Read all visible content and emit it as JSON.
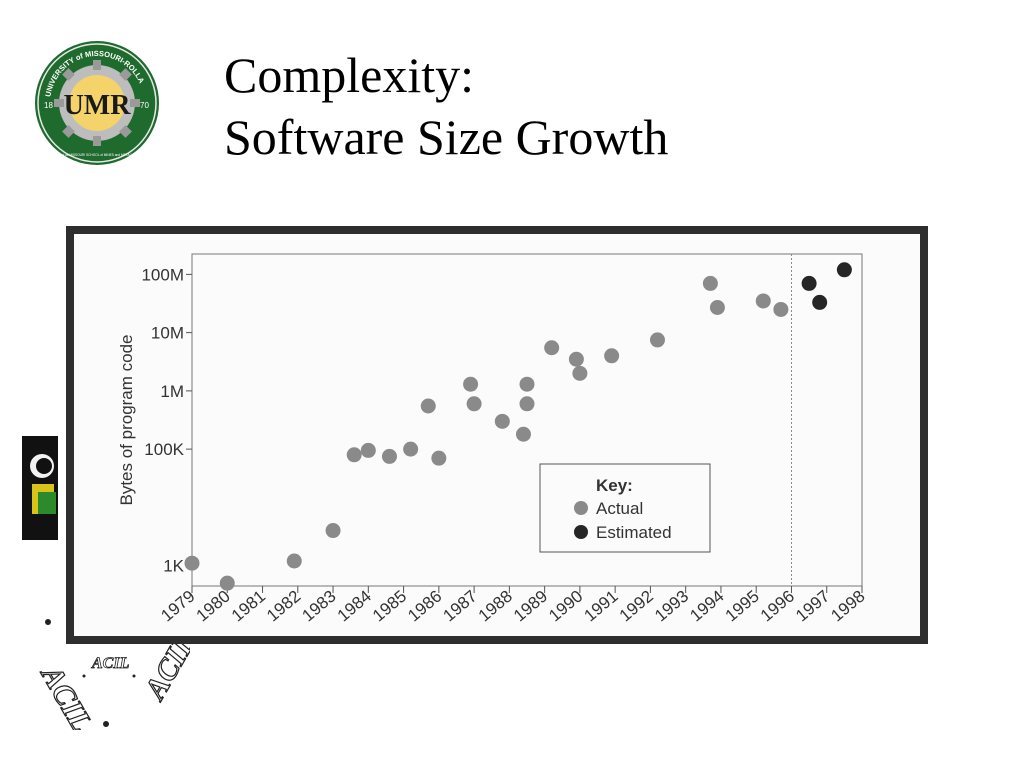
{
  "slide": {
    "title_line1": "Complexity:",
    "title_line2": "Software Size Growth"
  },
  "logo": {
    "ring_text": "UNIVERSITY of MISSOURI-ROLLA",
    "monogram": "UMR",
    "year_left": "18",
    "year_right": "70",
    "founded_text": "Founded as MISSOURI SCHOOL of MINES and METALLURGY"
  },
  "acil": {
    "text": "ACIL"
  },
  "colors": {
    "actual": "#8a8a8a",
    "estimated": "#262626",
    "frame": "#2e2e2e",
    "logo_green": "#1f6b2e",
    "logo_gold": "#d9a51c"
  },
  "chart_data": {
    "type": "scatter",
    "title": "",
    "ylabel": "Bytes of program code",
    "xlabel": "",
    "y_scale": "log",
    "xlim": [
      1979,
      1998
    ],
    "x_ticks": [
      "1979",
      "1980",
      "1981",
      "1982",
      "1983",
      "1984",
      "1985",
      "1986",
      "1987",
      "1988",
      "1989",
      "1990",
      "1991",
      "1992",
      "1993",
      "1994",
      "1995",
      "1996",
      "1997",
      "1998"
    ],
    "y_ticks": [
      {
        "label": "1K",
        "value": 1000
      },
      {
        "label": "100K",
        "value": 100000
      },
      {
        "label": "1M",
        "value": 1000000
      },
      {
        "label": "10M",
        "value": 10000000
      },
      {
        "label": "100M",
        "value": 100000000
      }
    ],
    "estimate_divider_x": 1996,
    "legend": {
      "placement": "bottom-right",
      "title": "Key:",
      "items": [
        {
          "label": "Actual",
          "series": "actual"
        },
        {
          "label": "Estimated",
          "series": "estimated"
        }
      ]
    },
    "series": [
      {
        "name": "Actual",
        "key": "actual",
        "points": [
          {
            "x": 1979.0,
            "y": 1100
          },
          {
            "x": 1980.0,
            "y": 500
          },
          {
            "x": 1981.9,
            "y": 1200
          },
          {
            "x": 1983.0,
            "y": 4000
          },
          {
            "x": 1983.6,
            "y": 80000
          },
          {
            "x": 1984.0,
            "y": 95000
          },
          {
            "x": 1984.6,
            "y": 75000
          },
          {
            "x": 1985.2,
            "y": 100000
          },
          {
            "x": 1985.7,
            "y": 550000
          },
          {
            "x": 1986.0,
            "y": 70000
          },
          {
            "x": 1986.9,
            "y": 1300000
          },
          {
            "x": 1987.0,
            "y": 600000
          },
          {
            "x": 1987.8,
            "y": 300000
          },
          {
            "x": 1988.4,
            "y": 180000
          },
          {
            "x": 1988.5,
            "y": 1300000
          },
          {
            "x": 1988.5,
            "y": 600000
          },
          {
            "x": 1989.2,
            "y": 5500000
          },
          {
            "x": 1989.9,
            "y": 3500000
          },
          {
            "x": 1990.0,
            "y": 2000000
          },
          {
            "x": 1990.9,
            "y": 4000000
          },
          {
            "x": 1992.2,
            "y": 7500000
          },
          {
            "x": 1993.7,
            "y": 70000000
          },
          {
            "x": 1993.9,
            "y": 27000000
          },
          {
            "x": 1995.2,
            "y": 35000000
          },
          {
            "x": 1995.7,
            "y": 25000000
          }
        ]
      },
      {
        "name": "Estimated",
        "key": "estimated",
        "points": [
          {
            "x": 1996.5,
            "y": 70000000
          },
          {
            "x": 1996.8,
            "y": 33000000
          },
          {
            "x": 1997.5,
            "y": 120000000
          }
        ]
      }
    ]
  }
}
